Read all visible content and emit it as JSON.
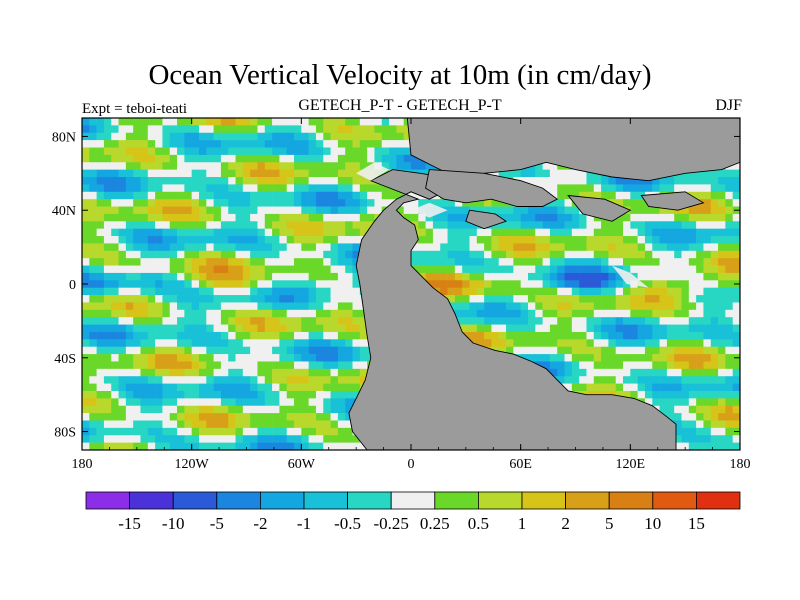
{
  "chart_data": {
    "type": "heatmap",
    "title": "Ocean Vertical Velocity at 10m (in cm/day)",
    "subtitle_left": "Expt = teboi-teati",
    "subtitle_center": "GETECH_P-T - GETECH_P-T",
    "subtitle_right": "DJF",
    "x_range": [
      -180,
      180
    ],
    "y_range": [
      -90,
      90
    ],
    "x_ticks": [
      {
        "value": -180,
        "label": "180"
      },
      {
        "value": -120,
        "label": "120W"
      },
      {
        "value": -60,
        "label": "60W"
      },
      {
        "value": 0,
        "label": "0"
      },
      {
        "value": 60,
        "label": "60E"
      },
      {
        "value": 120,
        "label": "120E"
      },
      {
        "value": 180,
        "label": "180"
      }
    ],
    "y_ticks": [
      {
        "value": 80,
        "label": "80N"
      },
      {
        "value": 40,
        "label": "40N"
      },
      {
        "value": 0,
        "label": "0"
      },
      {
        "value": -40,
        "label": "40S"
      },
      {
        "value": -80,
        "label": "80S"
      }
    ],
    "colorbar": {
      "levels": [
        "-15",
        "-10",
        "-5",
        "-2",
        "-1",
        "-0.5",
        "-0.25",
        "0.25",
        "0.5",
        "1",
        "2",
        "5",
        "10",
        "15"
      ],
      "level_values": [
        -15,
        -10,
        -5,
        -2,
        -1,
        -0.5,
        -0.25,
        0.25,
        0.5,
        1,
        2,
        5,
        10,
        15
      ],
      "colors": [
        "#8c2ee8",
        "#4a32d8",
        "#2a5ad8",
        "#1a86e0",
        "#14a6e0",
        "#18c0d8",
        "#28d6c4",
        "#f0f0f0",
        "#6ad828",
        "#b8d82c",
        "#d6c418",
        "#d8a018",
        "#d88014",
        "#e05a12",
        "#e03010"
      ]
    },
    "land_color": "#9b9b9b",
    "season": "DJF"
  }
}
